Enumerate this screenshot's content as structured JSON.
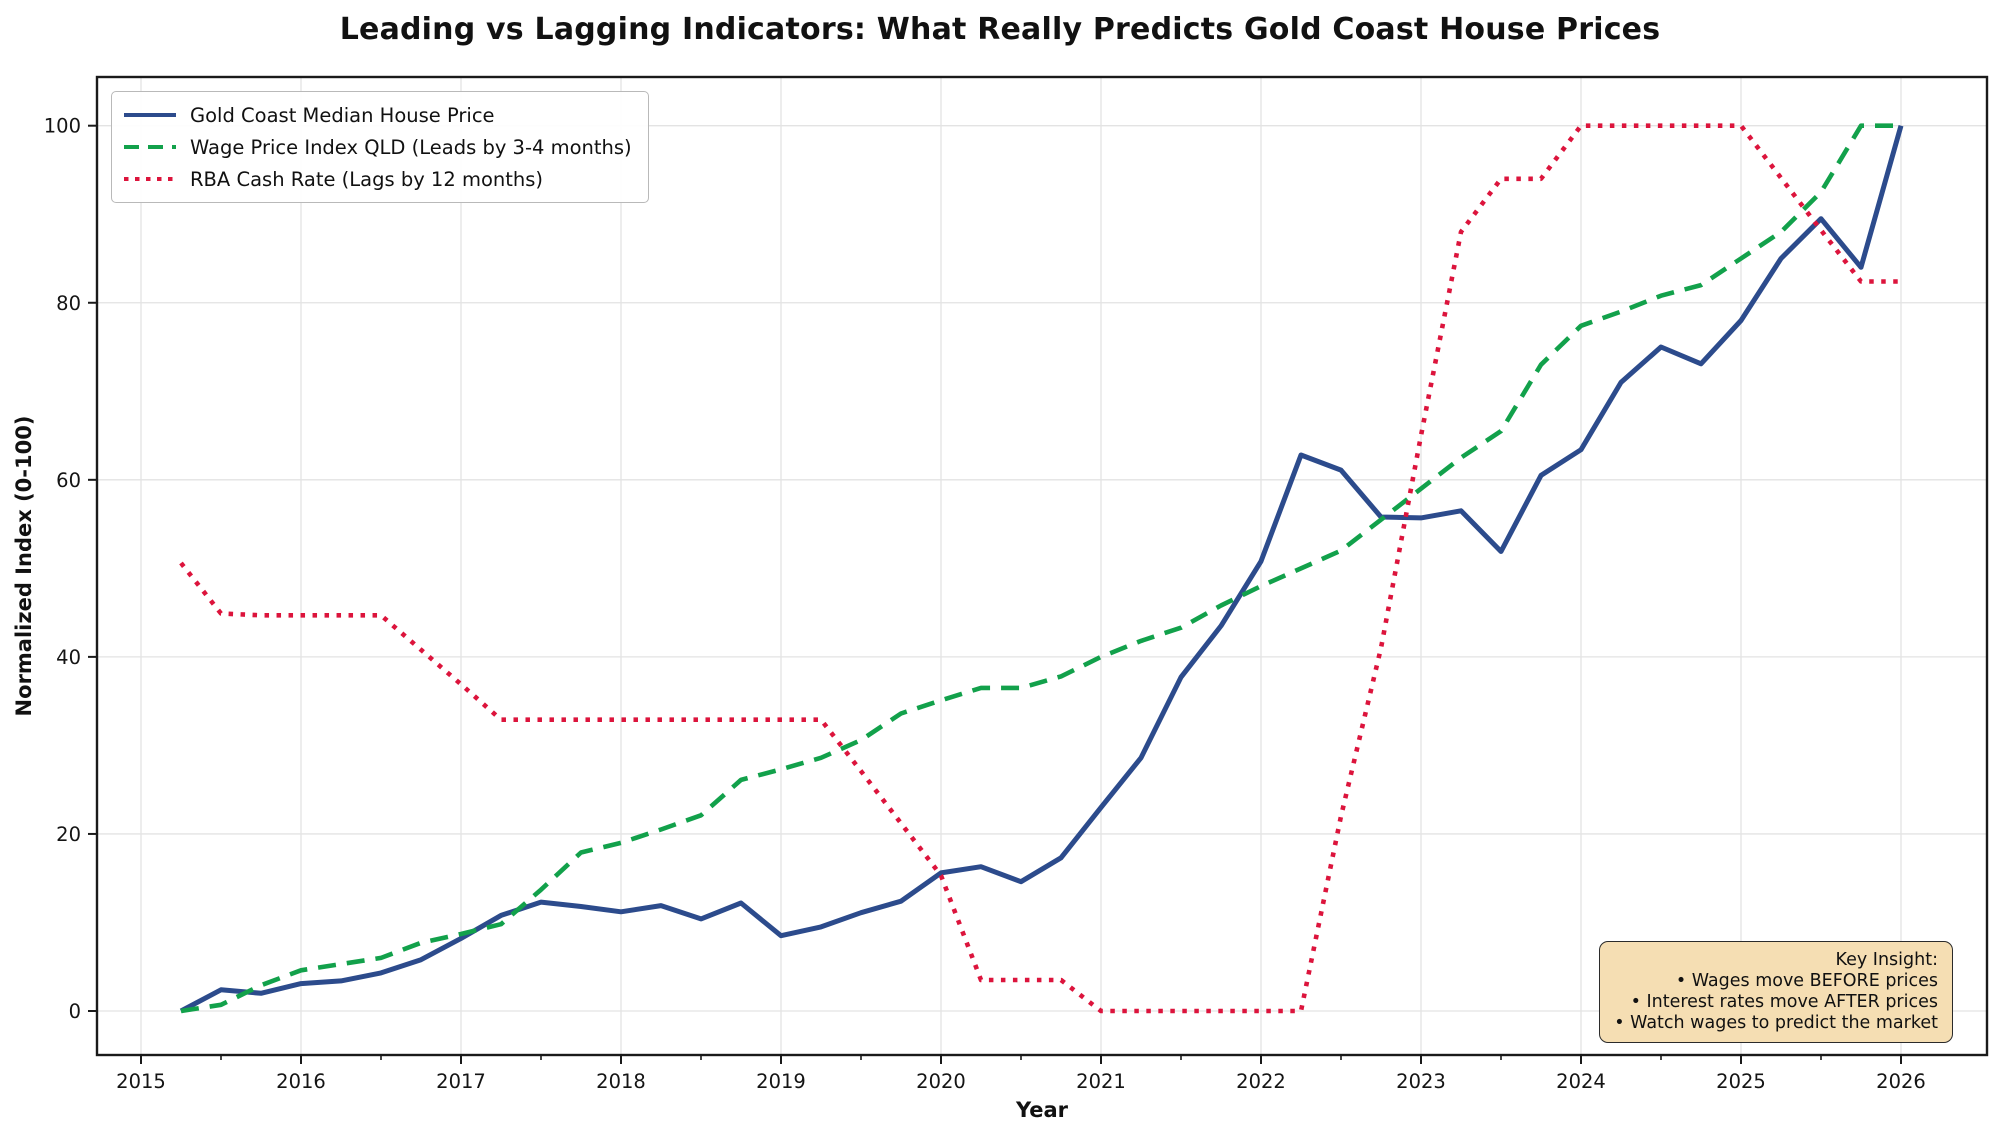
{
  "chart": {
    "title": "Leading vs Lagging Indicators: What Really Predicts Gold Coast House Prices",
    "xlabel": "Year",
    "ylabel": "Normalized Index (0-100)"
  },
  "annotation": {
    "lines": [
      "Key Insight:",
      "• Wages move BEFORE prices",
      "• Interest rates move AFTER prices",
      "• Watch wages to predict the market"
    ]
  },
  "chart_data": {
    "type": "line",
    "title": "Leading vs Lagging Indicators: What Really Predicts Gold Coast House Prices",
    "xlabel": "Year",
    "ylabel": "Normalized Index (0-100)",
    "x_ticks": [
      2015,
      2016,
      2017,
      2018,
      2019,
      2020,
      2021,
      2022,
      2023,
      2024,
      2025,
      2026
    ],
    "y_ticks": [
      0,
      20,
      40,
      60,
      80,
      100
    ],
    "xlim": [
      2014.67,
      2026.54
    ],
    "ylim": [
      -5.0,
      105.5
    ],
    "grid": true,
    "legend_position": "upper left",
    "x": [
      2015.25,
      2015.5,
      2015.75,
      2016.0,
      2016.25,
      2016.5,
      2016.75,
      2017.0,
      2017.25,
      2017.5,
      2017.75,
      2018.0,
      2018.25,
      2018.5,
      2018.75,
      2019.0,
      2019.25,
      2019.5,
      2019.75,
      2020.0,
      2020.25,
      2020.5,
      2020.75,
      2021.0,
      2021.25,
      2021.5,
      2021.75,
      2022.0,
      2022.25,
      2022.5,
      2022.75,
      2023.0,
      2023.25,
      2023.5,
      2023.75,
      2024.0,
      2024.25,
      2024.5,
      2024.75,
      2025.0,
      2025.25,
      2025.5,
      2025.75,
      2026.0
    ],
    "series": [
      {
        "name": "Gold Coast Median House Price",
        "color": "#2c4b8c",
        "style": "solid",
        "width": 5,
        "values": [
          0,
          2.4,
          2.0,
          3.1,
          3.4,
          4.3,
          5.8,
          8.2,
          10.8,
          12.3,
          11.8,
          11.2,
          11.9,
          10.4,
          12.2,
          8.5,
          9.5,
          11.1,
          12.4,
          15.6,
          16.3,
          14.6,
          17.3,
          23.0,
          28.6,
          37.7,
          43.5,
          50.8,
          62.8,
          61.1,
          55.8,
          55.7,
          56.5,
          51.9,
          60.5,
          63.4,
          71.0,
          75.0,
          73.1,
          78.0,
          85.0,
          89.5,
          84.0,
          100
        ]
      },
      {
        "name": "Wage Price Index QLD (Leads by 3-4 months)",
        "color": "#12a14b",
        "style": "dashed",
        "width": 4.6,
        "values": [
          0,
          0.7,
          2.9,
          4.6,
          5.3,
          6.0,
          7.7,
          8.7,
          9.8,
          13.7,
          17.9,
          19.0,
          20.5,
          22.1,
          26.1,
          27.3,
          28.6,
          30.6,
          33.6,
          35.1,
          36.5,
          36.5,
          37.8,
          40.0,
          41.8,
          43.3,
          45.8,
          48.0,
          50.0,
          52.0,
          55.5,
          59.0,
          62.5,
          65.5,
          73.0,
          77.4,
          79.0,
          80.8,
          82.0,
          85.0,
          88.0,
          92.5,
          100,
          100
        ]
      },
      {
        "name": "RBA Cash Rate (Lags by 12 months)",
        "color": "#dc143c",
        "style": "dotted",
        "width": 4.6,
        "values": [
          50.6,
          44.9,
          44.7,
          44.7,
          44.7,
          44.7,
          40.8,
          36.9,
          32.9,
          32.9,
          32.9,
          32.9,
          32.9,
          32.9,
          32.9,
          32.9,
          32.9,
          27.1,
          21.2,
          15.3,
          3.5,
          3.5,
          3.5,
          0,
          0,
          0,
          0,
          0,
          0,
          22.0,
          41.0,
          65.0,
          88.0,
          94.0,
          94.0,
          100,
          100,
          100,
          100,
          100,
          94.1,
          88.2,
          82.4,
          82.4
        ]
      }
    ]
  }
}
